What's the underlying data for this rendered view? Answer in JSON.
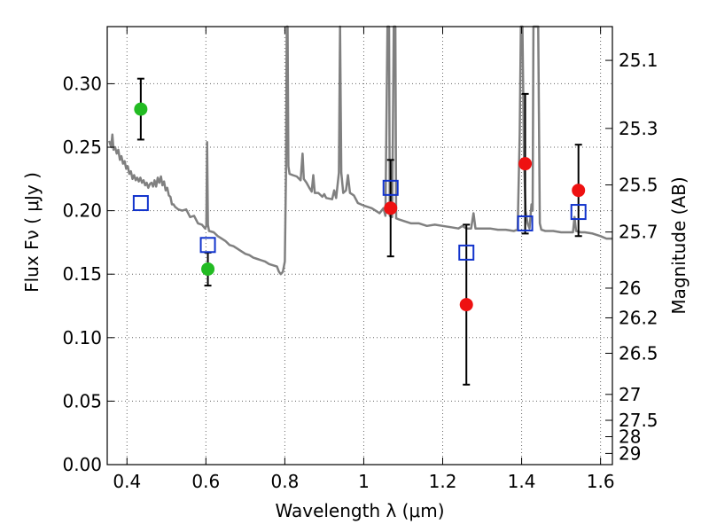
{
  "chart_data": {
    "type": "scatter",
    "xlabel": "Wavelength  λ (μm)",
    "ylabel": "Flux  Fν  ( μJy )",
    "ylabel2": "Magnitude (AB)",
    "xlim": [
      0.35,
      1.63
    ],
    "ylim": [
      0.0,
      0.345
    ],
    "x_ticks": [
      0.4,
      0.6,
      0.8,
      1.0,
      1.2,
      1.4,
      1.6
    ],
    "x_tick_labels": [
      "0.4",
      "0.6",
      "0.8",
      "1",
      "1.2",
      "1.4",
      "1.6"
    ],
    "y_ticks": [
      0.0,
      0.05,
      0.1,
      0.15,
      0.2,
      0.25,
      0.3
    ],
    "y_tick_labels": [
      "0.00",
      "0.05",
      "0.10",
      "0.15",
      "0.20",
      "0.25",
      "0.30"
    ],
    "mag_ticks": [
      {
        "label": "25.1",
        "flux": 0.3184
      },
      {
        "label": "25.3",
        "flux": 0.2648
      },
      {
        "label": "25.5",
        "flux": 0.2203
      },
      {
        "label": "25.7",
        "flux": 0.1832
      },
      {
        "label": "26",
        "flux": 0.139
      },
      {
        "label": "26.2",
        "flux": 0.1156
      },
      {
        "label": "26.5",
        "flux": 0.0877
      },
      {
        "label": "27",
        "flux": 0.0553
      },
      {
        "label": "27.5",
        "flux": 0.0349
      },
      {
        "label": "28",
        "flux": 0.022
      },
      {
        "label": "29",
        "flux": 0.0088
      }
    ],
    "grid": true,
    "colors": {
      "green": "#22bb22",
      "red": "#ee1111",
      "blue": "#1133cc",
      "spectrum": "#808080",
      "errorbar": "#000000"
    },
    "series": [
      {
        "marker": "circle-green",
        "points": [
          {
            "x": 0.435,
            "y": 0.28,
            "err_low": 0.024,
            "err_high": 0.024
          },
          {
            "x": 0.605,
            "y": 0.154,
            "err_low": 0.013,
            "err_high": 0.013
          }
        ]
      },
      {
        "marker": "circle-red",
        "points": [
          {
            "x": 1.068,
            "y": 0.202,
            "err_low": 0.038,
            "err_high": 0.038
          },
          {
            "x": 1.26,
            "y": 0.126,
            "err_low": 0.063,
            "err_high": 0.063
          },
          {
            "x": 1.409,
            "y": 0.237,
            "err_low": 0.055,
            "err_high": 0.055
          },
          {
            "x": 1.544,
            "y": 0.216,
            "err_low": 0.036,
            "err_high": 0.036
          }
        ]
      },
      {
        "marker": "square-blue-open",
        "points": [
          {
            "x": 0.435,
            "y": 0.206
          },
          {
            "x": 0.605,
            "y": 0.173
          },
          {
            "x": 1.068,
            "y": 0.218
          },
          {
            "x": 1.26,
            "y": 0.167
          },
          {
            "x": 1.409,
            "y": 0.19
          },
          {
            "x": 1.544,
            "y": 0.199
          }
        ]
      },
      {
        "marker": "line-gray",
        "points": [
          [
            0.355,
            0.255
          ],
          [
            0.36,
            0.25
          ],
          [
            0.363,
            0.26
          ],
          [
            0.366,
            0.248
          ],
          [
            0.37,
            0.25
          ],
          [
            0.374,
            0.245
          ],
          [
            0.378,
            0.248
          ],
          [
            0.382,
            0.24
          ],
          [
            0.386,
            0.243
          ],
          [
            0.39,
            0.237
          ],
          [
            0.394,
            0.239
          ],
          [
            0.398,
            0.233
          ],
          [
            0.402,
            0.235
          ],
          [
            0.406,
            0.229
          ],
          [
            0.41,
            0.231
          ],
          [
            0.414,
            0.225
          ],
          [
            0.418,
            0.228
          ],
          [
            0.422,
            0.224
          ],
          [
            0.426,
            0.226
          ],
          [
            0.43,
            0.223
          ],
          [
            0.434,
            0.226
          ],
          [
            0.438,
            0.222
          ],
          [
            0.442,
            0.224
          ],
          [
            0.446,
            0.22
          ],
          [
            0.45,
            0.222
          ],
          [
            0.454,
            0.218
          ],
          [
            0.458,
            0.221
          ],
          [
            0.462,
            0.222
          ],
          [
            0.466,
            0.219
          ],
          [
            0.47,
            0.224
          ],
          [
            0.474,
            0.219
          ],
          [
            0.478,
            0.226
          ],
          [
            0.482,
            0.222
          ],
          [
            0.486,
            0.227
          ],
          [
            0.49,
            0.22
          ],
          [
            0.494,
            0.223
          ],
          [
            0.498,
            0.216
          ],
          [
            0.502,
            0.218
          ],
          [
            0.506,
            0.212
          ],
          [
            0.51,
            0.211
          ],
          [
            0.514,
            0.205
          ],
          [
            0.518,
            0.205
          ],
          [
            0.522,
            0.203
          ],
          [
            0.53,
            0.201
          ],
          [
            0.54,
            0.2
          ],
          [
            0.55,
            0.201
          ],
          [
            0.56,
            0.195
          ],
          [
            0.57,
            0.196
          ],
          [
            0.58,
            0.19
          ],
          [
            0.59,
            0.189
          ],
          [
            0.598,
            0.186
          ],
          [
            0.601,
            0.188
          ],
          [
            0.603,
            0.254
          ],
          [
            0.605,
            0.189
          ],
          [
            0.608,
            0.184
          ],
          [
            0.62,
            0.183
          ],
          [
            0.63,
            0.18
          ],
          [
            0.64,
            0.178
          ],
          [
            0.65,
            0.176
          ],
          [
            0.66,
            0.173
          ],
          [
            0.67,
            0.172
          ],
          [
            0.68,
            0.17
          ],
          [
            0.69,
            0.168
          ],
          [
            0.7,
            0.166
          ],
          [
            0.71,
            0.165
          ],
          [
            0.72,
            0.163
          ],
          [
            0.73,
            0.162
          ],
          [
            0.74,
            0.161
          ],
          [
            0.75,
            0.16
          ],
          [
            0.76,
            0.158
          ],
          [
            0.77,
            0.157
          ],
          [
            0.78,
            0.156
          ],
          [
            0.785,
            0.152
          ],
          [
            0.79,
            0.15
          ],
          [
            0.795,
            0.152
          ],
          [
            0.8,
            0.16
          ],
          [
            0.803,
            0.23
          ],
          [
            0.805,
            0.345
          ],
          [
            0.807,
            0.345
          ],
          [
            0.809,
            0.235
          ],
          [
            0.812,
            0.229
          ],
          [
            0.82,
            0.228
          ],
          [
            0.83,
            0.227
          ],
          [
            0.84,
            0.224
          ],
          [
            0.845,
            0.245
          ],
          [
            0.848,
            0.225
          ],
          [
            0.855,
            0.222
          ],
          [
            0.862,
            0.218
          ],
          [
            0.868,
            0.215
          ],
          [
            0.872,
            0.228
          ],
          [
            0.876,
            0.214
          ],
          [
            0.885,
            0.214
          ],
          [
            0.895,
            0.211
          ],
          [
            0.9,
            0.213
          ],
          [
            0.905,
            0.21
          ],
          [
            0.92,
            0.209
          ],
          [
            0.925,
            0.216
          ],
          [
            0.93,
            0.21
          ],
          [
            0.937,
            0.23
          ],
          [
            0.94,
            0.345
          ],
          [
            0.943,
            0.23
          ],
          [
            0.948,
            0.214
          ],
          [
            0.955,
            0.216
          ],
          [
            0.96,
            0.228
          ],
          [
            0.965,
            0.214
          ],
          [
            0.975,
            0.212
          ],
          [
            0.985,
            0.206
          ],
          [
            1.0,
            0.204
          ],
          [
            1.01,
            0.203
          ],
          [
            1.02,
            0.202
          ],
          [
            1.03,
            0.2
          ],
          [
            1.04,
            0.198
          ],
          [
            1.05,
            0.202
          ],
          [
            1.055,
            0.196
          ],
          [
            1.06,
            0.345
          ],
          [
            1.064,
            0.345
          ],
          [
            1.066,
            0.196
          ],
          [
            1.072,
            0.195
          ],
          [
            1.076,
            0.345
          ],
          [
            1.08,
            0.345
          ],
          [
            1.082,
            0.194
          ],
          [
            1.09,
            0.193
          ],
          [
            1.1,
            0.192
          ],
          [
            1.12,
            0.19
          ],
          [
            1.14,
            0.19
          ],
          [
            1.16,
            0.188
          ],
          [
            1.18,
            0.189
          ],
          [
            1.2,
            0.188
          ],
          [
            1.22,
            0.187
          ],
          [
            1.24,
            0.186
          ],
          [
            1.25,
            0.188
          ],
          [
            1.26,
            0.186
          ],
          [
            1.272,
            0.186
          ],
          [
            1.278,
            0.198
          ],
          [
            1.283,
            0.186
          ],
          [
            1.3,
            0.186
          ],
          [
            1.32,
            0.186
          ],
          [
            1.34,
            0.185
          ],
          [
            1.36,
            0.185
          ],
          [
            1.38,
            0.184
          ],
          [
            1.39,
            0.185
          ],
          [
            1.395,
            0.26
          ],
          [
            1.398,
            0.345
          ],
          [
            1.402,
            0.345
          ],
          [
            1.406,
            0.24
          ],
          [
            1.41,
            0.2
          ],
          [
            1.415,
            0.19
          ],
          [
            1.42,
            0.186
          ],
          [
            1.425,
            0.205
          ],
          [
            1.428,
            0.2
          ],
          [
            1.43,
            0.345
          ],
          [
            1.442,
            0.345
          ],
          [
            1.446,
            0.19
          ],
          [
            1.45,
            0.185
          ],
          [
            1.46,
            0.184
          ],
          [
            1.48,
            0.184
          ],
          [
            1.5,
            0.183
          ],
          [
            1.52,
            0.183
          ],
          [
            1.53,
            0.183
          ],
          [
            1.534,
            0.195
          ],
          [
            1.538,
            0.184
          ],
          [
            1.55,
            0.183
          ],
          [
            1.56,
            0.183
          ],
          [
            1.58,
            0.182
          ],
          [
            1.6,
            0.18
          ],
          [
            1.615,
            0.178
          ],
          [
            1.63,
            0.178
          ]
        ]
      }
    ]
  }
}
